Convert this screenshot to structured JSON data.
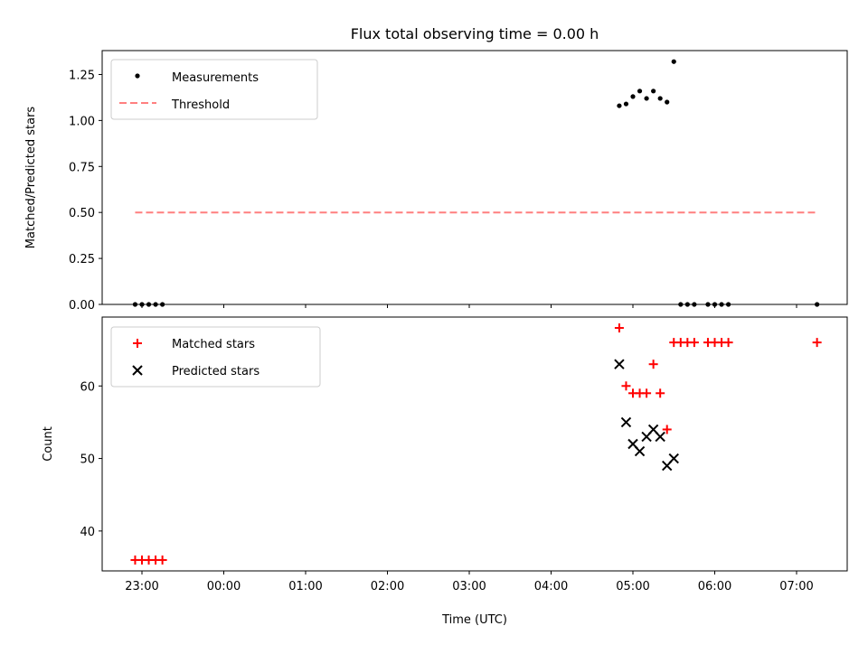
{
  "title": "Flux total observing time = 0.00 h",
  "colors": {
    "measure": "#000000",
    "threshold": "#ff7f7f",
    "matched": "#ff0000",
    "predicted": "#000000"
  },
  "chart_data": [
    {
      "type": "scatter",
      "ylabel": "Matched/Predicted stars",
      "ylim": [
        0,
        1.38
      ],
      "yticks": [
        0,
        0.25,
        0.5,
        0.75,
        1.0,
        1.25
      ],
      "ytick_labels": [
        "0.00",
        "0.25",
        "0.50",
        "0.75",
        "1.00",
        "1.25"
      ],
      "legend_position": "upper-left",
      "series": [
        {
          "name": "Measurements",
          "marker": "dot",
          "x": [
            "22:55",
            "23:00",
            "23:05",
            "23:10",
            "23:15",
            "04:50",
            "04:55",
            "05:00",
            "05:05",
            "05:10",
            "05:15",
            "05:20",
            "05:25",
            "05:30",
            "05:35",
            "05:40",
            "05:45",
            "05:55",
            "06:00",
            "06:05",
            "06:10",
            "07:15"
          ],
          "y": [
            0,
            0,
            0,
            0,
            0,
            1.08,
            1.09,
            1.13,
            1.16,
            1.12,
            1.16,
            1.12,
            1.1,
            1.32,
            0,
            0,
            0,
            0,
            0,
            0,
            0,
            0
          ]
        },
        {
          "name": "Threshold",
          "line": "dashed",
          "x": [
            "22:55",
            "07:15"
          ],
          "y": [
            0.5,
            0.5
          ]
        }
      ]
    },
    {
      "type": "scatter",
      "xlabel": "Time (UTC)",
      "ylabel": "Count",
      "ylim": [
        34.5,
        69.5
      ],
      "yticks": [
        40,
        50,
        60
      ],
      "xticks": [
        "23:00",
        "00:00",
        "01:00",
        "02:00",
        "03:00",
        "04:00",
        "05:00",
        "06:00",
        "07:00"
      ],
      "legend_position": "upper-left",
      "series": [
        {
          "name": "Matched stars",
          "marker": "plus",
          "x": [
            "22:55",
            "23:00",
            "23:05",
            "23:10",
            "23:15",
            "04:50",
            "04:55",
            "05:00",
            "05:05",
            "05:10",
            "05:15",
            "05:20",
            "05:25",
            "05:30",
            "05:35",
            "05:40",
            "05:45",
            "05:55",
            "06:00",
            "06:05",
            "06:10",
            "07:15"
          ],
          "y": [
            36,
            36,
            36,
            36,
            36,
            68,
            60,
            59,
            59,
            59,
            63,
            59,
            54,
            66,
            66,
            66,
            66,
            66,
            66,
            66,
            66,
            66
          ]
        },
        {
          "name": "Predicted stars",
          "marker": "x",
          "x": [
            "04:50",
            "04:55",
            "05:00",
            "05:05",
            "05:10",
            "05:15",
            "05:20",
            "05:25",
            "05:30"
          ],
          "y": [
            63,
            55,
            52,
            51,
            53,
            54,
            53,
            49,
            50
          ]
        }
      ]
    }
  ]
}
